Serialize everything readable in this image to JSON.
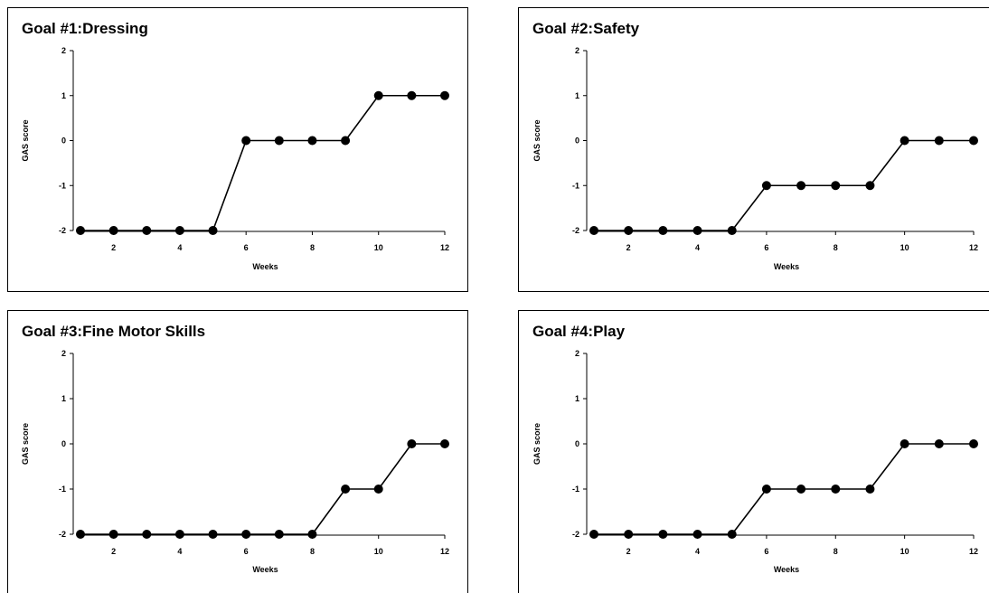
{
  "chart_data": [
    {
      "type": "line",
      "title": "Goal #1:Dressing",
      "xlabel": "Weeks",
      "ylabel": "GAS score",
      "x": [
        1,
        2,
        3,
        4,
        5,
        6,
        7,
        8,
        9,
        10,
        11,
        12
      ],
      "y": [
        -2,
        -2,
        -2,
        -2,
        -2,
        0,
        0,
        0,
        0,
        1,
        1,
        1
      ],
      "xticks": [
        2,
        4,
        6,
        8,
        10,
        12
      ],
      "yticks": [
        2,
        1,
        0,
        -1,
        -2
      ],
      "ylim": [
        -2,
        2
      ],
      "xlim": [
        1,
        12
      ],
      "grid": false,
      "marker": "filled circle",
      "color": "#000000"
    },
    {
      "type": "line",
      "title": "Goal #2:Safety",
      "xlabel": "Weeks",
      "ylabel": "GAS score",
      "x": [
        1,
        2,
        3,
        4,
        5,
        6,
        7,
        8,
        9,
        10,
        11,
        12
      ],
      "y": [
        -2,
        -2,
        -2,
        -2,
        -2,
        -1,
        -1,
        -1,
        -1,
        0,
        0,
        0
      ],
      "xticks": [
        2,
        4,
        6,
        8,
        10,
        12
      ],
      "yticks": [
        2,
        1,
        0,
        -1,
        -2
      ],
      "ylim": [
        -2,
        2
      ],
      "xlim": [
        1,
        12
      ],
      "grid": false,
      "marker": "filled circle",
      "color": "#000000"
    },
    {
      "type": "line",
      "title": "Goal #3:Fine Motor Skills",
      "xlabel": "Weeks",
      "ylabel": "GAS score",
      "x": [
        1,
        2,
        3,
        4,
        5,
        6,
        7,
        8,
        9,
        10,
        11,
        12
      ],
      "y": [
        -2,
        -2,
        -2,
        -2,
        -2,
        -2,
        -2,
        -2,
        -1,
        -1,
        0,
        0
      ],
      "xticks": [
        2,
        4,
        6,
        8,
        10,
        12
      ],
      "yticks": [
        2,
        1,
        0,
        -1,
        -2
      ],
      "ylim": [
        -2,
        2
      ],
      "xlim": [
        1,
        12
      ],
      "grid": false,
      "marker": "filled circle",
      "color": "#000000"
    },
    {
      "type": "line",
      "title": "Goal #4:Play",
      "xlabel": "Weeks",
      "ylabel": "GAS score",
      "x": [
        1,
        2,
        3,
        4,
        5,
        6,
        7,
        8,
        9,
        10,
        11,
        12
      ],
      "y": [
        -2,
        -2,
        -2,
        -2,
        -2,
        -1,
        -1,
        -1,
        -1,
        0,
        0,
        0
      ],
      "xticks": [
        2,
        4,
        6,
        8,
        10,
        12
      ],
      "yticks": [
        2,
        1,
        0,
        -1,
        -2
      ],
      "ylim": [
        -2,
        2
      ],
      "xlim": [
        1,
        12
      ],
      "grid": false,
      "marker": "filled circle",
      "color": "#000000"
    }
  ]
}
